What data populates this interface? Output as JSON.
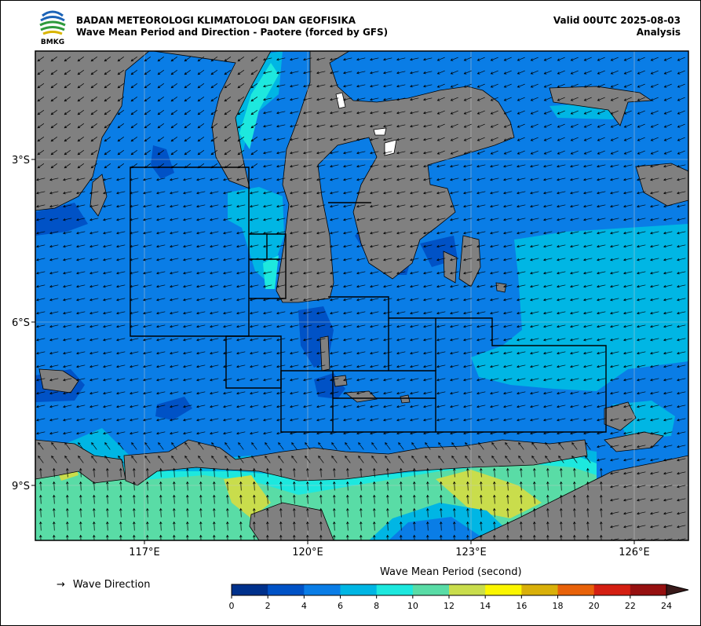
{
  "header": {
    "organization": "BADAN METEOROLOGI KLIMATOLOGI DAN GEOFISIKA",
    "title": "Wave Mean Period and Direction - Paotere (forced by GFS)",
    "valid": "Valid 00UTC 2025-08-03",
    "mode": "Analysis",
    "logo_text": "BMKG"
  },
  "axes": {
    "lat_labels": [
      "3°S",
      "6°S",
      "9°S"
    ],
    "lon_labels": [
      "117°E",
      "120°E",
      "123°E",
      "126°E"
    ]
  },
  "legend": {
    "direction_label": "Wave Direction",
    "direction_symbol": "→",
    "colorbar_title": "Wave Mean Period (second)",
    "ticks": [
      "0",
      "2",
      "4",
      "6",
      "8",
      "10",
      "12",
      "14",
      "16",
      "18",
      "20",
      "22",
      "24"
    ],
    "colors": [
      "#00318c",
      "#0052c6",
      "#0a7de6",
      "#00b6e4",
      "#1de8de",
      "#59dca6",
      "#c9dd4c",
      "#fbf600",
      "#d9b00a",
      "#e8620a",
      "#d41f12",
      "#961010"
    ]
  },
  "colors": {
    "land": "#808080",
    "sea_main": "#0a7de6",
    "sea_dark": "#0052c6"
  }
}
